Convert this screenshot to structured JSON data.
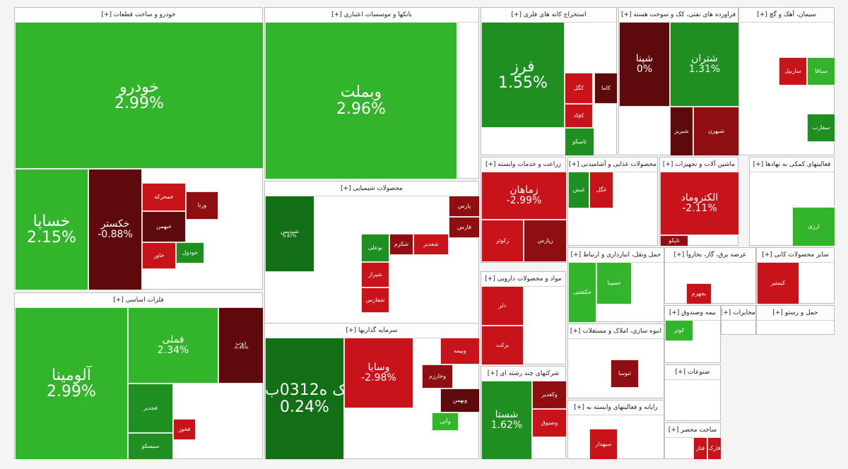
{
  "chart_data": {
    "type": "treemap",
    "colors": {
      "bright_green": "#33b52b",
      "green": "#1f8f22",
      "dark_green": "#136f16",
      "red": "#c8131a",
      "dark_red": "#8e0e12",
      "very_dark_red": "#5e0a0c"
    },
    "sectors": [
      {
        "label": "خودرو و ساخت قطعات [+]",
        "tiles": [
          {
            "name": "خودرو",
            "change": "2.99%",
            "value": 2.99
          },
          {
            "name": "خساپا",
            "change": "2.15%",
            "value": 2.15
          },
          {
            "name": "خکستر",
            "change": "-0.88%",
            "value": -0.88
          },
          {
            "name": "خمحرکه",
            "change": "",
            "value": -2
          },
          {
            "name": "ورنا",
            "change": "",
            "value": -2
          },
          {
            "name": "خبهمن",
            "change": "",
            "value": -1
          },
          {
            "name": "خودول",
            "change": "",
            "value": 1
          },
          {
            "name": "خاور",
            "change": "",
            "value": -1
          }
        ]
      },
      {
        "label": "فلزات اساسی [+]",
        "tiles": [
          {
            "name": "آلومینا",
            "change": "2.99%",
            "value": 2.99
          },
          {
            "name": "فملی",
            "change": "2.34%",
            "value": 2.34
          },
          {
            "name": "ذوب",
            "change": "-0.46%",
            "value": -0.46
          },
          {
            "name": "فجدیر",
            "change": "",
            "value": 1
          },
          {
            "name": "فخوز",
            "change": "",
            "value": -1
          },
          {
            "name": "سیسکو",
            "change": "",
            "value": 1
          }
        ]
      },
      {
        "label": "بانکها و موسسات اعتباری [+]",
        "tiles": [
          {
            "name": "وبملت",
            "change": "2.96%",
            "value": 2.96
          }
        ]
      },
      {
        "label": "محصولات شیمیایی [+]",
        "tiles": [
          {
            "name": "شپدیس",
            "change": "0.87%",
            "value": 0.87
          },
          {
            "name": "پارس",
            "change": "",
            "value": -2
          },
          {
            "name": "بوعلی",
            "change": "",
            "value": -1
          },
          {
            "name": "شیراز",
            "change": "",
            "value": -1
          },
          {
            "name": "شفارس",
            "change": "",
            "value": -2
          },
          {
            "name": "شغدیر",
            "change": "",
            "value": -2
          },
          {
            "name": "شکرم",
            "change": "",
            "value": -1
          },
          {
            "name": "فارس",
            "change": "",
            "value": -2
          }
        ]
      },
      {
        "label": "سرمایه گذاریها [+]",
        "tiles": [
          {
            "name": "سیک ه0312ب01",
            "change": "0.24%",
            "value": 0.24
          },
          {
            "name": "وسایا",
            "change": "-2.98%",
            "value": -2.98
          },
          {
            "name": "وبیمه",
            "change": "",
            "value": -1
          },
          {
            "name": "وخارزم",
            "change": "",
            "value": -1
          },
          {
            "name": "وبهمن",
            "change": "",
            "value": -1
          },
          {
            "name": "وآتی",
            "change": "",
            "value": 1
          }
        ]
      },
      {
        "label": "استخراج کانه های فلزی [+]",
        "tiles": [
          {
            "name": "فرز",
            "change": "1.55%",
            "value": 1.55
          },
          {
            "name": "کگل",
            "change": "",
            "value": -1
          },
          {
            "name": "کاما",
            "change": "",
            "value": -2
          },
          {
            "name": "کچاد",
            "change": "",
            "value": -2
          },
          {
            "name": "تامیکو",
            "change": "",
            "value": 1
          }
        ]
      },
      {
        "label": "زراعت و خدمات وابسته [+]",
        "tiles": [
          {
            "name": "زماهان",
            "change": "-2.99%",
            "value": -2.99
          },
          {
            "name": "زکوثر",
            "change": "",
            "value": -1
          },
          {
            "name": "زپارس",
            "change": "",
            "value": -1
          }
        ]
      },
      {
        "label": "مواد و محصولات دارویی [+]",
        "tiles": [
          {
            "name": "دلر",
            "change": "",
            "value": -1
          },
          {
            "name": "برکت",
            "change": "",
            "value": -2
          }
        ]
      },
      {
        "label": "شرکتهای چند رشته ای [+]",
        "tiles": [
          {
            "name": "شستا",
            "change": "1.62%",
            "value": 1.62
          },
          {
            "name": "وکغدیر",
            "change": "",
            "value": -2
          },
          {
            "name": "وصنوق",
            "change": "",
            "value": -1
          }
        ]
      },
      {
        "label": "فراورده های نفتی، کک و سوخت هسته [+]",
        "tiles": [
          {
            "name": "شپنا",
            "change": "0%",
            "value": 0
          },
          {
            "name": "شتران",
            "change": "1.31%",
            "value": 1.31
          },
          {
            "name": "شبهرن",
            "change": "",
            "value": -2
          },
          {
            "name": "شبریز",
            "change": "",
            "value": -2
          }
        ]
      },
      {
        "label": "محصولات غذایی و آشامیدنی [+]",
        "tiles": [
          {
            "name": "غگل",
            "change": "",
            "value": -1
          },
          {
            "name": "غبش",
            "change": "",
            "value": 1
          }
        ]
      },
      {
        "label": "ماشین آلات و تجهیزات [+]",
        "tiles": [
          {
            "name": "الکتروماد",
            "change": "-2.11%",
            "value": -2.11
          },
          {
            "name": "تاپکو",
            "change": "",
            "value": -1
          }
        ]
      },
      {
        "label": "سیمان، آهک و گچ [+]",
        "tiles": [
          {
            "name": "ساربیل",
            "change": "",
            "value": -1
          },
          {
            "name": "سباقا",
            "change": "",
            "value": 1
          },
          {
            "name": "سفارب",
            "change": "",
            "value": 1
          }
        ]
      },
      {
        "label": "فعالیتهای کمکی به نهادها [+]",
        "tiles": [
          {
            "name": "ارزی",
            "change": "",
            "value": 1
          }
        ]
      },
      {
        "label": "حمل ونقل، انبارداری و ارتباط [+]",
        "tiles": [
          {
            "name": "حسینا",
            "change": "",
            "value": 1
          },
          {
            "name": "حکشتی",
            "change": "",
            "value": 1
          }
        ]
      },
      {
        "label": "عرضه برق، گاز، بخاروآ [+]",
        "tiles": [
          {
            "name": "بجهرم",
            "change": "",
            "value": 1
          }
        ]
      },
      {
        "label": "سایر محصولات کانی [+]",
        "tiles": [
          {
            "name": "کیمتیر",
            "change": "",
            "value": -2
          }
        ]
      },
      {
        "label": "انبوه سازی، املاک و مستغلات [+]",
        "tiles": [
          {
            "name": "ثنوسا",
            "change": "",
            "value": -1
          }
        ]
      },
      {
        "label": "رایانه و فعالیتهای وابسته به [+]",
        "tiles": [
          {
            "name": "سپهدار",
            "change": "",
            "value": -2
          }
        ]
      },
      {
        "label": "بیمه وصندوق [+]",
        "tiles": [
          {
            "name": "کوثر",
            "change": "",
            "value": 1
          }
        ]
      },
      {
        "label": "مخابرات [+]",
        "tiles": []
      },
      {
        "label": "حمل و رستو [+]",
        "tiles": []
      },
      {
        "label": "صنوعات [+]",
        "tiles": []
      },
      {
        "label": "ساخت محصر [+]",
        "tiles": [
          {
            "name": "فارک",
            "change": "",
            "value": -1
          },
          {
            "name": "فتاز",
            "change": "",
            "value": -2
          }
        ]
      }
    ]
  }
}
